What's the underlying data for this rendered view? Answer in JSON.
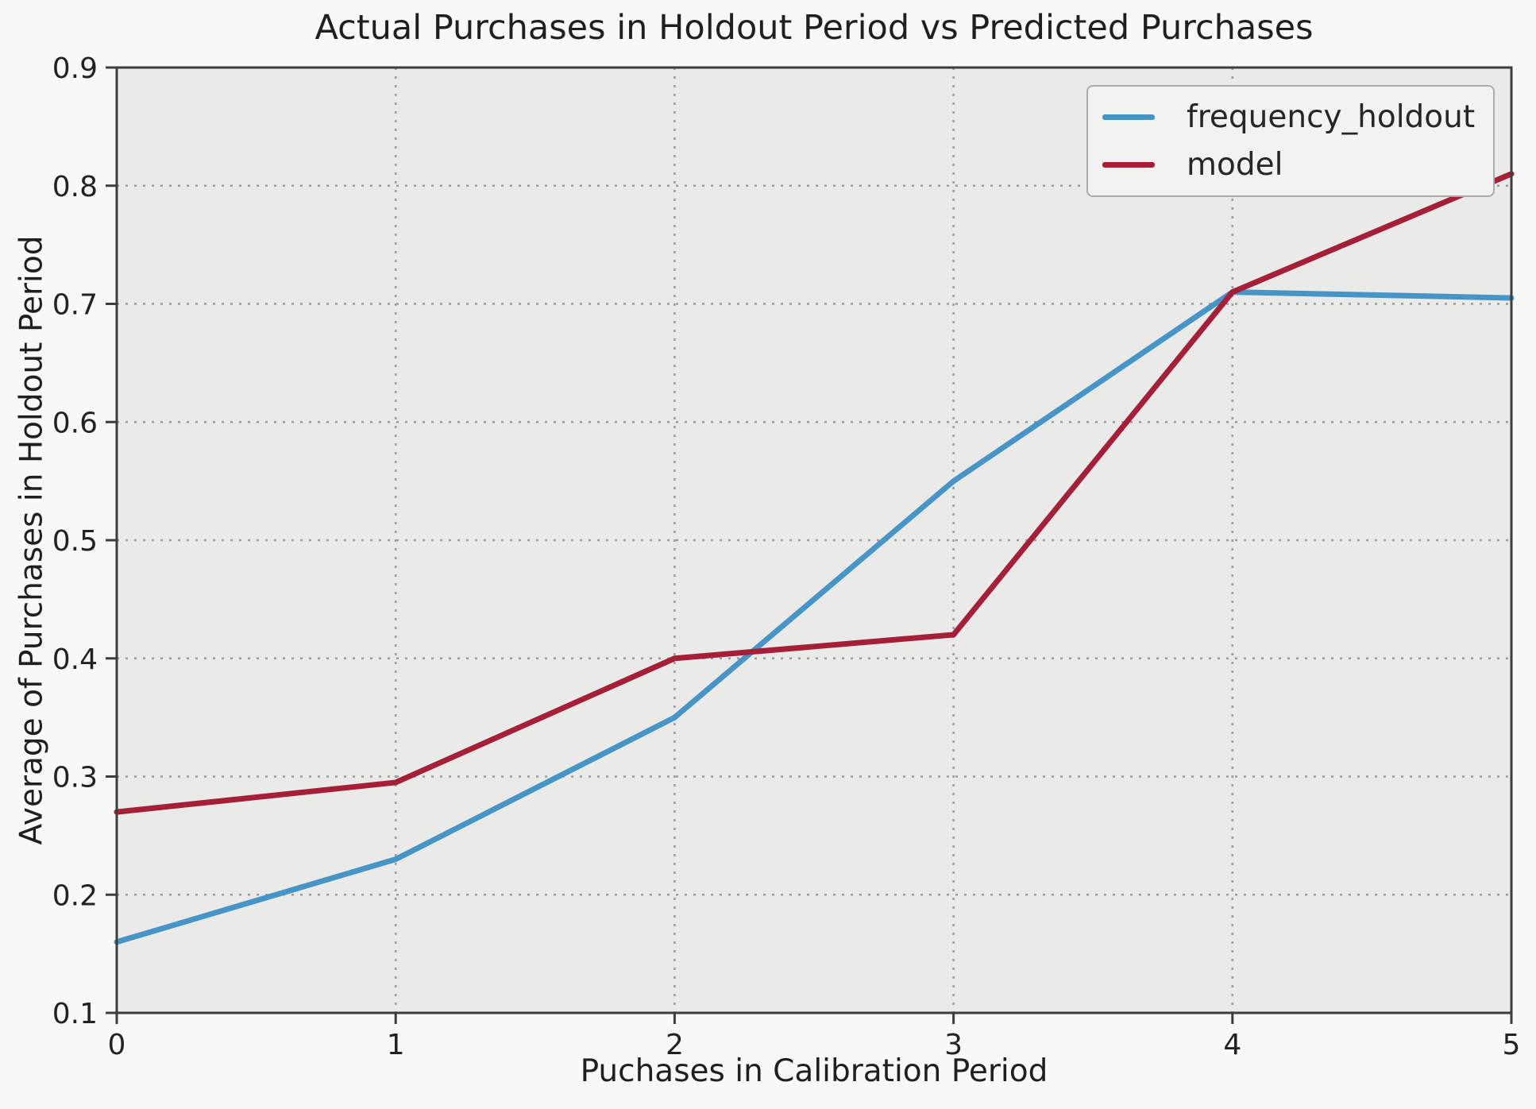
{
  "figure": {
    "title": "Actual Purchases in Holdout Period vs Predicted Purchases",
    "xlabel": "Puchases in Calibration Period",
    "ylabel": "Average of Purchases in Holdout Period"
  },
  "legend": {
    "position": "upper right",
    "entries": [
      {
        "label": "frequency_holdout",
        "color": "#4795C6"
      },
      {
        "label": "model",
        "color": "#A61F39"
      }
    ]
  },
  "chart_data": {
    "type": "line",
    "title": "Actual Purchases in Holdout Period vs Predicted Purchases",
    "xlabel": "Puchases in Calibration Period",
    "ylabel": "Average of Purchases in Holdout Period",
    "x": [
      0,
      1,
      2,
      3,
      4,
      5
    ],
    "series": [
      {
        "name": "frequency_holdout",
        "color": "#4795C6",
        "values": [
          0.16,
          0.23,
          0.35,
          0.55,
          0.71,
          0.705
        ]
      },
      {
        "name": "model",
        "color": "#A61F39",
        "values": [
          0.27,
          0.295,
          0.4,
          0.42,
          0.71,
          0.81
        ]
      }
    ],
    "xlim": [
      0,
      5
    ],
    "ylim": [
      0.1,
      0.9
    ],
    "xticks": [
      "0",
      "1",
      "2",
      "3",
      "4",
      "5"
    ],
    "yticks": [
      "0.1",
      "0.2",
      "0.3",
      "0.4",
      "0.5",
      "0.6",
      "0.7",
      "0.8",
      "0.9"
    ],
    "grid": true,
    "grid_style": "dotted",
    "legend_position": "upper right"
  },
  "colors": {
    "figure_bg": "#F8F8F6",
    "plot_bg": "#EAEAE9",
    "grid": "#9C9C9C",
    "spine": "#3D3D3D",
    "tick_text": "#222222"
  }
}
